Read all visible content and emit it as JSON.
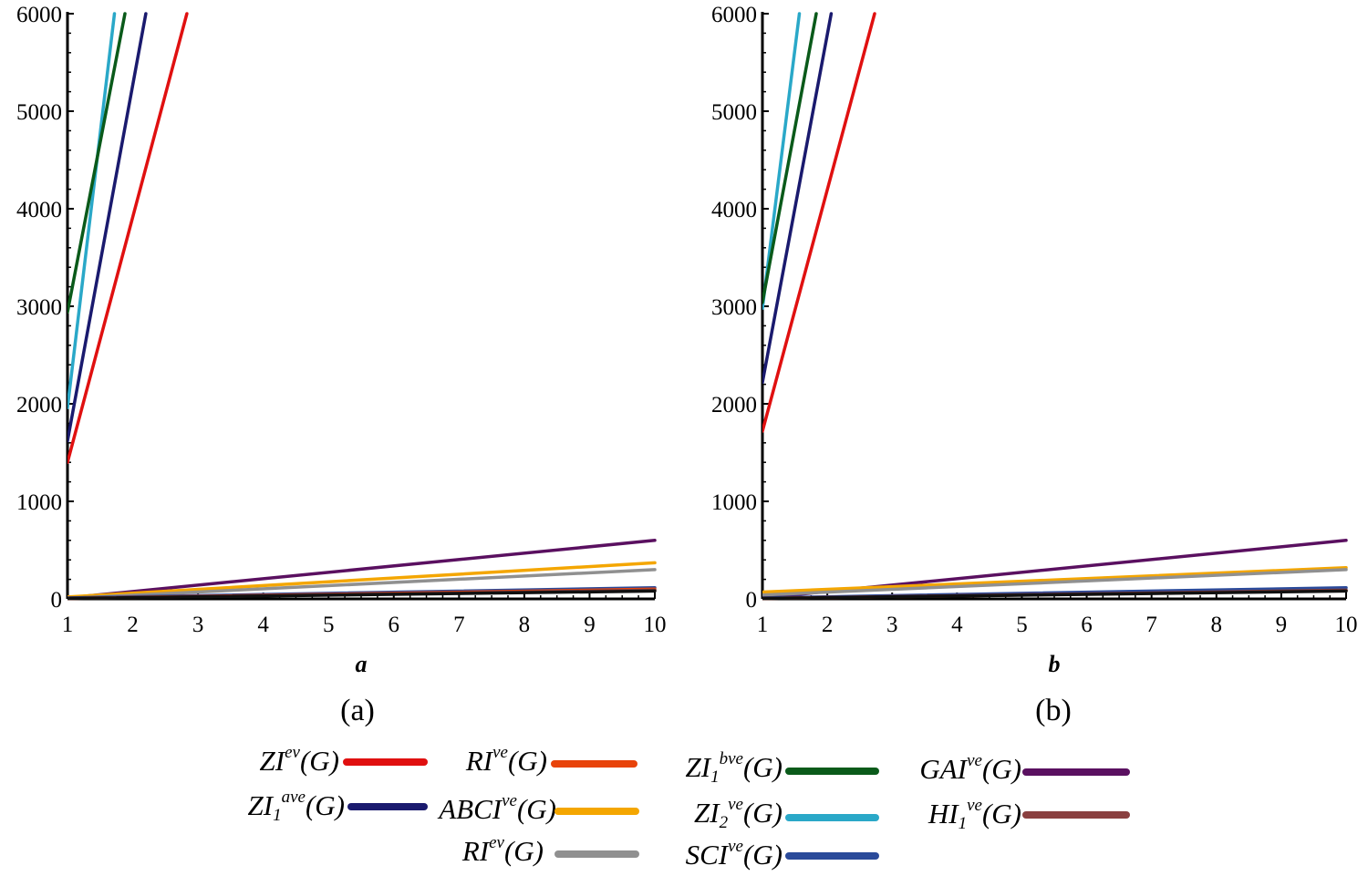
{
  "chart_data": [
    {
      "type": "line",
      "caption": "(a)",
      "xlabel": "a",
      "ylabel": "",
      "xlim": [
        1,
        10
      ],
      "ylim": [
        0,
        6000
      ],
      "xticks": [
        "1",
        "2",
        "3",
        "4",
        "5",
        "6",
        "7",
        "8",
        "9",
        "10"
      ],
      "yticks": [
        "0",
        "1000",
        "2000",
        "3000",
        "4000",
        "5000",
        "6000"
      ],
      "series": [
        {
          "id": "zi_ev",
          "color": "#e01010",
          "x": [
            1,
            2.83
          ],
          "y": [
            1400,
            6000
          ]
        },
        {
          "id": "zi1_ave",
          "color": "#1a1a6e",
          "x": [
            1,
            2.2
          ],
          "y": [
            1620,
            6000
          ]
        },
        {
          "id": "zi2_ve",
          "color": "#2aa8c8",
          "x": [
            1,
            1.72
          ],
          "y": [
            1960,
            6000
          ]
        },
        {
          "id": "zi1_bve",
          "color": "#0a5a1a",
          "x": [
            1,
            1.88
          ],
          "y": [
            2940,
            6000
          ]
        },
        {
          "id": "gai_ve",
          "color": "#5a1060",
          "x": [
            1,
            10
          ],
          "y": [
            10,
            600
          ]
        },
        {
          "id": "abci_ve",
          "color": "#f4a600",
          "x": [
            1,
            10
          ],
          "y": [
            20,
            370
          ]
        },
        {
          "id": "ri_ev",
          "color": "#909090",
          "x": [
            1,
            10
          ],
          "y": [
            5,
            300
          ]
        },
        {
          "id": "sci_ve",
          "color": "#2a4a9a",
          "x": [
            1,
            10
          ],
          "y": [
            10,
            115
          ]
        },
        {
          "id": "ri_ve",
          "color": "#e8430a",
          "x": [
            1,
            10
          ],
          "y": [
            5,
            100
          ]
        },
        {
          "id": "hi1_ve",
          "color": "#8a4040",
          "x": [
            1,
            10
          ],
          "y": [
            5,
            90
          ]
        },
        {
          "id": "black",
          "color": "#101010",
          "x": [
            1,
            10
          ],
          "y": [
            5,
            80
          ]
        }
      ]
    },
    {
      "type": "line",
      "caption": "(b)",
      "xlabel": "b",
      "ylabel": "",
      "xlim": [
        1,
        10
      ],
      "ylim": [
        0,
        6000
      ],
      "xticks": [
        "1",
        "2",
        "3",
        "4",
        "5",
        "6",
        "7",
        "8",
        "9",
        "10"
      ],
      "yticks": [
        "0",
        "1000",
        "2000",
        "3000",
        "4000",
        "5000",
        "6000"
      ],
      "series": [
        {
          "id": "zi_ev",
          "color": "#e01010",
          "x": [
            1,
            2.73
          ],
          "y": [
            1720,
            6000
          ]
        },
        {
          "id": "zi1_ave",
          "color": "#1a1a6e",
          "x": [
            1,
            2.06
          ],
          "y": [
            2220,
            6000
          ]
        },
        {
          "id": "zi2_ve",
          "color": "#2aa8c8",
          "x": [
            1,
            1.57
          ],
          "y": [
            2980,
            6000
          ]
        },
        {
          "id": "zi1_bve",
          "color": "#0a5a1a",
          "x": [
            1,
            1.83
          ],
          "y": [
            3040,
            6000
          ]
        },
        {
          "id": "gai_ve",
          "color": "#5a1060",
          "x": [
            1,
            10
          ],
          "y": [
            10,
            600
          ]
        },
        {
          "id": "abci_ve",
          "color": "#f4a600",
          "x": [
            1,
            10
          ],
          "y": [
            70,
            320
          ]
        },
        {
          "id": "ri_ev",
          "color": "#909090",
          "x": [
            1,
            10
          ],
          "y": [
            40,
            300
          ]
        },
        {
          "id": "sci_ve",
          "color": "#2a4a9a",
          "x": [
            1,
            10
          ],
          "y": [
            10,
            115
          ]
        },
        {
          "id": "ri_ve",
          "color": "#e8430a",
          "x": [
            1,
            10
          ],
          "y": [
            5,
            85
          ]
        },
        {
          "id": "hi1_ve",
          "color": "#8a4040",
          "x": [
            1,
            10
          ],
          "y": [
            5,
            90
          ]
        },
        {
          "id": "black",
          "color": "#101010",
          "x": [
            1,
            10
          ],
          "y": [
            5,
            80
          ]
        }
      ]
    }
  ],
  "legend": [
    {
      "id": "zi_ev",
      "base": "ZI",
      "sub": "",
      "sup": "ev",
      "tail": "(G)",
      "color": "#e01010"
    },
    {
      "id": "zi1_ave",
      "base": "ZI",
      "sub": "1",
      "sup": "ave",
      "tail": "(G)",
      "color": "#1a1a6e"
    },
    {
      "id": "ri_ve",
      "base": "RI",
      "sub": "",
      "sup": "ve",
      "tail": "(G)",
      "color": "#e8430a"
    },
    {
      "id": "abci_ve",
      "base": "ABCI",
      "sub": "",
      "sup": "ve",
      "tail": "(G)",
      "color": "#f4a600"
    },
    {
      "id": "ri_ev",
      "base": "RI",
      "sub": "",
      "sup": "ev",
      "tail": "(G)",
      "color": "#909090"
    },
    {
      "id": "zi1_bve",
      "base": "ZI",
      "sub": "1",
      "sup": "bve",
      "tail": "(G)",
      "color": "#0a5a1a"
    },
    {
      "id": "zi2_ve",
      "base": "ZI",
      "sub": "2",
      "sup": "ve",
      "tail": "(G)",
      "color": "#2aa8c8"
    },
    {
      "id": "sci_ve",
      "base": "SCI",
      "sub": "",
      "sup": "ve",
      "tail": "(G)",
      "color": "#2a4a9a"
    },
    {
      "id": "gai_ve",
      "base": "GAI",
      "sub": "",
      "sup": "ve",
      "tail": "(G)",
      "color": "#5a1060"
    },
    {
      "id": "hi1_ve",
      "base": "HI",
      "sub": "1",
      "sup": "ve",
      "tail": "(G)",
      "color": "#8a4040"
    }
  ]
}
